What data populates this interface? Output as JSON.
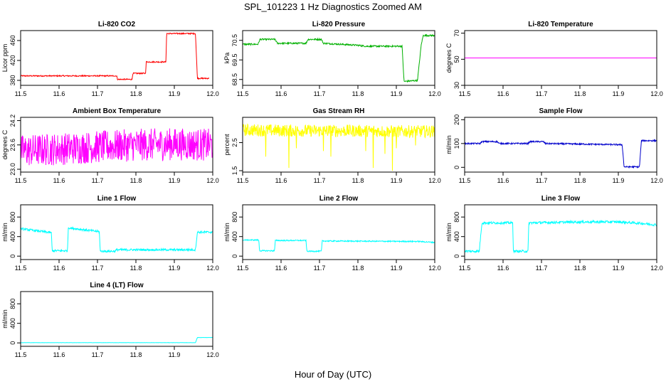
{
  "figure": {
    "title": "SPL_101223  1 Hz Diagnostics Zoomed AM",
    "xlabel": "Hour of Day (UTC)"
  },
  "chart_data": [
    {
      "type": "line",
      "title": "Li-820 CO2",
      "ylabel": "Licor ppm",
      "color": "#ff0000",
      "xlim": [
        11.5,
        12.0
      ],
      "ylim": [
        370,
        480
      ],
      "xticks": [
        11.5,
        11.6,
        11.7,
        11.8,
        11.9,
        12.0
      ],
      "xtick_labels": [
        "11.5",
        "11.6",
        "11.7",
        "11.8",
        "11.9",
        "12.0"
      ],
      "yticks": [
        380,
        420,
        460
      ],
      "ytick_labels": [
        "380",
        "420",
        "460"
      ],
      "series": [
        {
          "x": [
            11.5,
            11.75,
            11.752,
            11.79,
            11.792,
            11.825,
            11.827,
            11.878,
            11.88,
            11.955,
            11.96,
            11.99
          ],
          "y": [
            389,
            389,
            382,
            382,
            394,
            394,
            417,
            417,
            474,
            474,
            384,
            384
          ],
          "noise": 1.2
        }
      ]
    },
    {
      "type": "line",
      "title": "Li-820 Pressure",
      "ylabel": "kPa",
      "color": "#00b000",
      "xlim": [
        11.5,
        12.0
      ],
      "ylim": [
        68.2,
        71.0
      ],
      "xticks": [
        11.5,
        11.6,
        11.7,
        11.8,
        11.9,
        12.0
      ],
      "xtick_labels": [
        "11.5",
        "11.6",
        "11.7",
        "11.8",
        "11.9",
        "12.0"
      ],
      "yticks": [
        68.5,
        69.5,
        70.5
      ],
      "ytick_labels": [
        "68.5",
        "69.5",
        "70.5"
      ],
      "series": [
        {
          "x": [
            11.5,
            11.54,
            11.545,
            11.585,
            11.59,
            11.665,
            11.67,
            11.705,
            11.71,
            11.8,
            11.82,
            11.915,
            11.92,
            11.955,
            11.958,
            11.965,
            11.97,
            12.0
          ],
          "y": [
            70.3,
            70.3,
            70.55,
            70.55,
            70.35,
            70.35,
            70.55,
            70.55,
            70.35,
            70.25,
            70.2,
            70.2,
            68.4,
            68.45,
            69.0,
            70.3,
            70.75,
            70.75
          ],
          "noise": 0.04
        }
      ]
    },
    {
      "type": "line",
      "title": "Li-820 Temperature",
      "ylabel": "degrees C",
      "color": "#ff00ff",
      "xlim": [
        11.5,
        12.0
      ],
      "ylim": [
        30,
        72
      ],
      "xticks": [
        11.5,
        11.6,
        11.7,
        11.8,
        11.9,
        12.0
      ],
      "xtick_labels": [
        "11.5",
        "11.6",
        "11.7",
        "11.8",
        "11.9",
        "12.0"
      ],
      "yticks": [
        30,
        50,
        70
      ],
      "ytick_labels": [
        "30",
        "50",
        "70"
      ],
      "series": [
        {
          "x": [
            11.5,
            12.0
          ],
          "y": [
            51,
            51
          ],
          "noise": 0
        }
      ]
    },
    {
      "type": "line",
      "title": "Ambient Box Temperature",
      "ylabel": "degrees C",
      "color": "#ff00ff",
      "xlim": [
        11.5,
        12.0
      ],
      "ylim": [
        22.93,
        24.28
      ],
      "xticks": [
        11.5,
        11.6,
        11.7,
        11.8,
        11.9,
        12.0
      ],
      "xtick_labels": [
        "11.5",
        "11.6",
        "11.7",
        "11.8",
        "11.9",
        "12.0"
      ],
      "yticks": [
        23.0,
        23.6,
        24.2
      ],
      "ytick_labels": [
        "23.0",
        "23.6",
        "24.2"
      ],
      "series": [
        {
          "x": [
            11.5,
            11.6,
            11.7,
            11.8,
            11.9,
            12.0
          ],
          "y": [
            23.45,
            23.5,
            23.55,
            23.6,
            23.62,
            23.6
          ],
          "noise": 0.4
        }
      ]
    },
    {
      "type": "line",
      "title": "Gas Stream RH",
      "ylabel": "percent",
      "color": "#ffff00",
      "xlim": [
        11.5,
        12.0
      ],
      "ylim": [
        1.45,
        3.4
      ],
      "xticks": [
        11.5,
        11.6,
        11.7,
        11.8,
        11.9,
        12.0
      ],
      "xtick_labels": [
        "11.5",
        "11.6",
        "11.7",
        "11.8",
        "11.9",
        "12.0"
      ],
      "yticks": [
        1.5,
        2.5
      ],
      "ytick_labels": [
        "1.5",
        "2.5"
      ],
      "series": [
        {
          "x": [
            11.5,
            11.6,
            11.7,
            11.8,
            11.9,
            12.0
          ],
          "y": [
            2.95,
            2.93,
            2.92,
            2.92,
            2.9,
            2.9
          ],
          "noise": 0.22,
          "dips": [
            [
              11.56,
              2.0
            ],
            [
              11.62,
              1.6
            ],
            [
              11.64,
              2.3
            ],
            [
              11.71,
              2.2
            ],
            [
              11.73,
              2.0
            ],
            [
              11.82,
              2.2
            ],
            [
              11.84,
              1.6
            ],
            [
              11.87,
              2.1
            ],
            [
              11.89,
              1.5
            ],
            [
              11.9,
              2.3
            ],
            [
              11.95,
              2.4
            ]
          ]
        }
      ]
    },
    {
      "type": "line",
      "title": "Sample Flow",
      "ylabel": "ml/min",
      "color": "#0000cc",
      "xlim": [
        11.5,
        12.0
      ],
      "ylim": [
        -20,
        210
      ],
      "xticks": [
        11.5,
        11.6,
        11.7,
        11.8,
        11.9,
        12.0
      ],
      "xtick_labels": [
        "11.5",
        "11.6",
        "11.7",
        "11.8",
        "11.9",
        "12.0"
      ],
      "yticks": [
        0,
        100,
        200
      ],
      "ytick_labels": [
        "0",
        "100",
        "200"
      ],
      "series": [
        {
          "x": [
            11.5,
            11.54,
            11.545,
            11.585,
            11.59,
            11.665,
            11.67,
            11.705,
            11.71,
            11.91,
            11.915,
            11.955,
            11.96,
            12.0
          ],
          "y": [
            100,
            100,
            108,
            108,
            100,
            100,
            108,
            108,
            100,
            95,
            2,
            2,
            112,
            112
          ],
          "noise": 3
        }
      ]
    },
    {
      "type": "line",
      "title": "Line 1 Flow",
      "ylabel": "ml/min",
      "color": "#00ffff",
      "xlim": [
        11.5,
        12.0
      ],
      "ylim": [
        -70,
        1050
      ],
      "xticks": [
        11.5,
        11.6,
        11.7,
        11.8,
        11.9,
        12.0
      ],
      "xtick_labels": [
        "11.5",
        "11.6",
        "11.7",
        "11.8",
        "11.9",
        "12.0"
      ],
      "yticks": [
        0,
        400,
        800
      ],
      "ytick_labels": [
        "0",
        "400",
        "800"
      ],
      "series": [
        {
          "x": [
            11.5,
            11.58,
            11.582,
            11.622,
            11.624,
            11.705,
            11.707,
            11.745,
            11.75,
            11.955,
            11.96,
            12.0
          ],
          "y": [
            560,
            480,
            110,
            110,
            580,
            500,
            100,
            100,
            130,
            130,
            490,
            490
          ],
          "noise": 22
        }
      ]
    },
    {
      "type": "line",
      "title": "Line 2 Flow",
      "ylabel": "ml/min",
      "color": "#00ffff",
      "xlim": [
        11.5,
        12.0
      ],
      "ylim": [
        -70,
        1050
      ],
      "xticks": [
        11.5,
        11.6,
        11.7,
        11.8,
        11.9,
        12.0
      ],
      "xtick_labels": [
        "11.5",
        "11.6",
        "11.7",
        "11.8",
        "11.9",
        "12.0"
      ],
      "yticks": [
        0,
        400,
        800
      ],
      "ytick_labels": [
        "0",
        "400",
        "800"
      ],
      "series": [
        {
          "x": [
            11.5,
            11.542,
            11.544,
            11.583,
            11.585,
            11.665,
            11.667,
            11.705,
            11.707,
            11.96,
            12.0
          ],
          "y": [
            330,
            330,
            110,
            110,
            320,
            320,
            100,
            100,
            310,
            300,
            280
          ],
          "noise": 12
        }
      ]
    },
    {
      "type": "line",
      "title": "Line 3 Flow",
      "ylabel": "ml/min",
      "color": "#00ffff",
      "xlim": [
        11.5,
        12.0
      ],
      "ylim": [
        -70,
        1050
      ],
      "xticks": [
        11.5,
        11.6,
        11.7,
        11.8,
        11.9,
        12.0
      ],
      "xtick_labels": [
        "11.5",
        "11.6",
        "11.7",
        "11.8",
        "11.9",
        "12.0"
      ],
      "yticks": [
        0,
        400,
        800
      ],
      "ytick_labels": [
        "0",
        "400",
        "800"
      ],
      "series": [
        {
          "x": [
            11.5,
            11.538,
            11.545,
            11.625,
            11.627,
            11.665,
            11.667,
            11.8,
            11.9,
            11.96,
            12.0
          ],
          "y": [
            100,
            100,
            680,
            680,
            100,
            100,
            680,
            700,
            700,
            670,
            640
          ],
          "noise": 25
        }
      ]
    },
    {
      "type": "line",
      "title": "Line 4 (LT) Flow",
      "ylabel": "ml/min",
      "color": "#00ffff",
      "xlim": [
        11.5,
        12.0
      ],
      "ylim": [
        -70,
        1050
      ],
      "xticks": [
        11.5,
        11.6,
        11.7,
        11.8,
        11.9,
        12.0
      ],
      "xtick_labels": [
        "11.5",
        "11.6",
        "11.7",
        "11.8",
        "11.9",
        "12.0"
      ],
      "yticks": [
        0,
        400,
        800
      ],
      "ytick_labels": [
        "0",
        "400",
        "800"
      ],
      "series": [
        {
          "x": [
            11.5,
            11.955,
            11.96,
            12.0
          ],
          "y": [
            5,
            5,
            110,
            110
          ],
          "noise": 2
        }
      ]
    }
  ]
}
